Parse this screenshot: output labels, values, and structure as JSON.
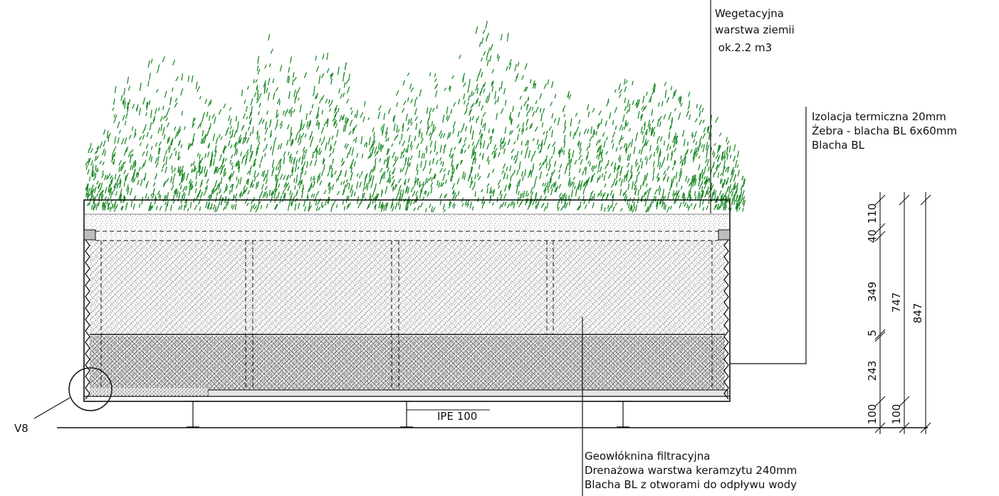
{
  "labels": {
    "vegetation": [
      "Wegetacyjna",
      "warstwa ziemii",
      " ok.2.2 m3"
    ],
    "insulation": [
      "Izolacja termiczna 20mm",
      "Żebra - blacha BL 6x60mm",
      "Blacha BL"
    ],
    "bottom": [
      "Geowłóknina filtracyjna",
      "Drenażowa warstwa keramzytu 240mm",
      "Blacha BL z otworami do odpływu wody"
    ],
    "beam": "IPE 100",
    "detail": "V8"
  },
  "dimensions": {
    "inner": [
      "110",
      "40",
      "349",
      "5",
      "243",
      "100"
    ],
    "mid": [
      "747",
      "100"
    ],
    "outer": [
      "847"
    ]
  },
  "colors": {
    "grass": "#1f8a2a",
    "line": "#111111"
  }
}
